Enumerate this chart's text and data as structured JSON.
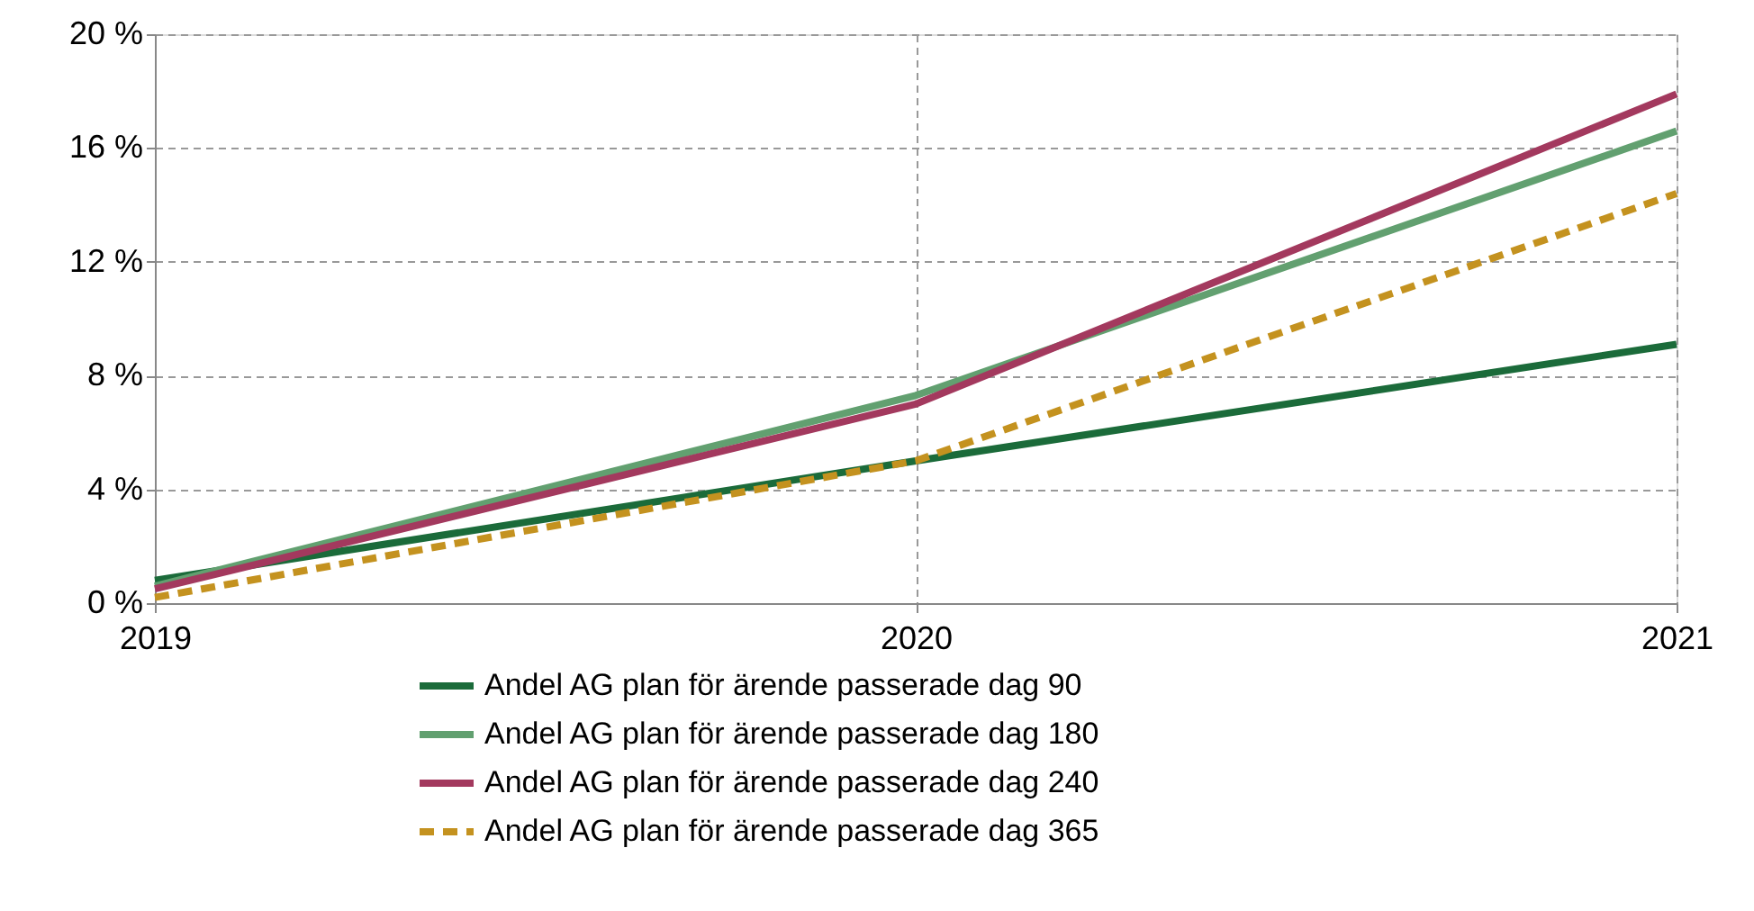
{
  "chart_data": {
    "type": "line",
    "x": [
      2019,
      2020,
      2021
    ],
    "series": [
      {
        "name": "Andel AG plan för ärende passerade dag 90",
        "color": "#1b6b3a",
        "values": [
          0.8,
          5.0,
          9.1
        ]
      },
      {
        "name": "Andel AG plan för ärende passerade dag 180",
        "color": "#62a070",
        "values": [
          0.6,
          7.3,
          16.6
        ]
      },
      {
        "name": "Andel AG plan för ärende passerade dag 240",
        "color": "#a3395e",
        "values": [
          0.5,
          7.0,
          17.9
        ]
      },
      {
        "name": "Andel AG plan för ärende passerade dag 365",
        "color": "#c4921f",
        "values": [
          0.2,
          5.0,
          14.4
        ],
        "line_style": "dashed"
      }
    ],
    "xlim": [
      2019,
      2021
    ],
    "xticks": [
      2019,
      2020,
      2021
    ],
    "ylim": [
      0,
      20
    ],
    "yticks": [
      {
        "value": 0,
        "label": "0 %"
      },
      {
        "value": 4,
        "label": "4 %"
      },
      {
        "value": 8,
        "label": "8 %"
      },
      {
        "value": 12,
        "label": "12 %"
      },
      {
        "value": 16,
        "label": "16 %"
      },
      {
        "value": 20,
        "label": "20 %"
      }
    ],
    "grid": true,
    "legend": "bottom",
    "marker": "none"
  }
}
